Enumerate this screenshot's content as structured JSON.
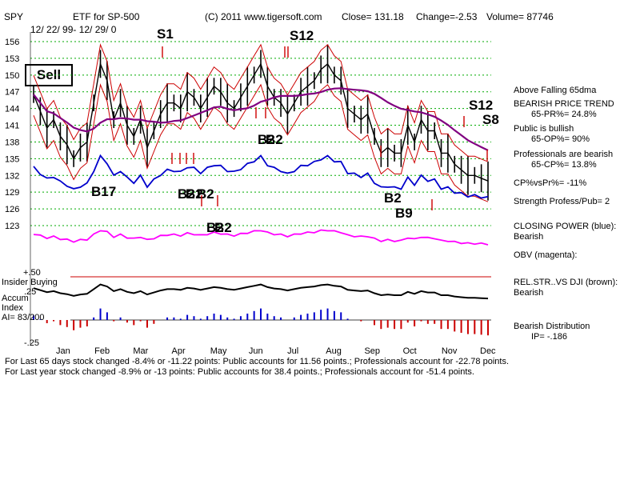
{
  "header": {
    "ticker": "SPY",
    "title": "ETF for SP-500",
    "copyright": "(C) 2011 www.tigersoft.com",
    "close": "Close= 131.18",
    "change": "Change=-2.53",
    "volume": "Volume= 87746",
    "date_range": "12/ 22/ 99- 12/ 29/ 0"
  },
  "sell_label": "Sell",
  "sidebar": {
    "lines": [
      "Above Falling 65dma",
      "BEARISH PRICE TREND",
      "65-PR%= 24.8%",
      "Public is bullish",
      "65-OP%= 90%",
      "Professionals are bearish",
      "65-CP%= 13.8%",
      "CP%vsPr%= -11%",
      "Strength Profess/Pub= 2",
      "CLOSING POWER (blue):",
      "Bearish",
      "OBV (magenta):",
      "REL.STR..VS DJI (brown):",
      "Bearish",
      "Bearish Distribution",
      "IP= -.186"
    ]
  },
  "lower_panel": {
    "plus_label": "+.50",
    "insider_label": "Insider Buying",
    "accum_label": "Accum",
    "index_label": "Index",
    "ai_label": "AI= 83/200",
    "zero_label": ".25",
    "minus_label": "-.25"
  },
  "footer": {
    "line1": "For Last 65 days stock changed -8.4% or -11.22 points:  Public accounts for  11.56 points.;  Professionals account for -22.78 points.",
    "line2": "For Last year stock changed -8.9% or -13 points:  Public accounts for  38.4 points.;  Professionals account for -51.4 points."
  },
  "colors": {
    "price_bars": "#000000",
    "band": "#cc0000",
    "ma65": "#800080",
    "closing_power": "#0000cc",
    "obv": "#ff00ff",
    "signal_arrow": "#cc0000",
    "grid": "#00aa00",
    "accum_up": "#0000cc",
    "accum_down": "#cc0000"
  },
  "chart_data": {
    "type": "line",
    "ylabel": "",
    "ylim": [
      121,
      158
    ],
    "yticks": [
      156,
      153,
      150,
      147,
      144,
      141,
      138,
      135,
      132,
      129,
      126,
      123
    ],
    "months": [
      "Jan",
      "Feb",
      "Mar",
      "Apr",
      "May",
      "Jun",
      "Jul",
      "Aug",
      "Sep",
      "Oct",
      "Nov",
      "Dec"
    ],
    "series": [
      {
        "values": [
          146.5,
          143.5,
          140.5,
          142,
          139,
          137.5,
          135,
          137,
          138,
          145,
          152,
          149,
          142,
          145,
          141,
          139,
          142,
          137,
          140,
          143,
          145,
          145,
          144,
          147,
          146,
          144,
          146,
          148,
          147,
          145,
          144,
          146,
          148,
          150,
          152,
          148,
          146,
          145,
          143,
          145,
          147,
          148,
          149,
          151,
          152,
          150,
          149,
          144,
          143,
          142,
          143,
          139,
          136,
          137,
          136,
          136,
          141,
          138,
          142,
          140,
          140,
          136,
          136,
          134,
          133,
          132,
          132,
          131.5,
          131
        ]
      },
      {
        "values": []
      },
      {
        "values": []
      },
      {
        "values": []
      },
      {
        "values": []
      }
    ],
    "signals": [
      "S1",
      "S12",
      "S12",
      "S8",
      "B17",
      "B2",
      "B2",
      "B2",
      "B2",
      "B2",
      "B2",
      "B2",
      "B2",
      "B9"
    ]
  }
}
